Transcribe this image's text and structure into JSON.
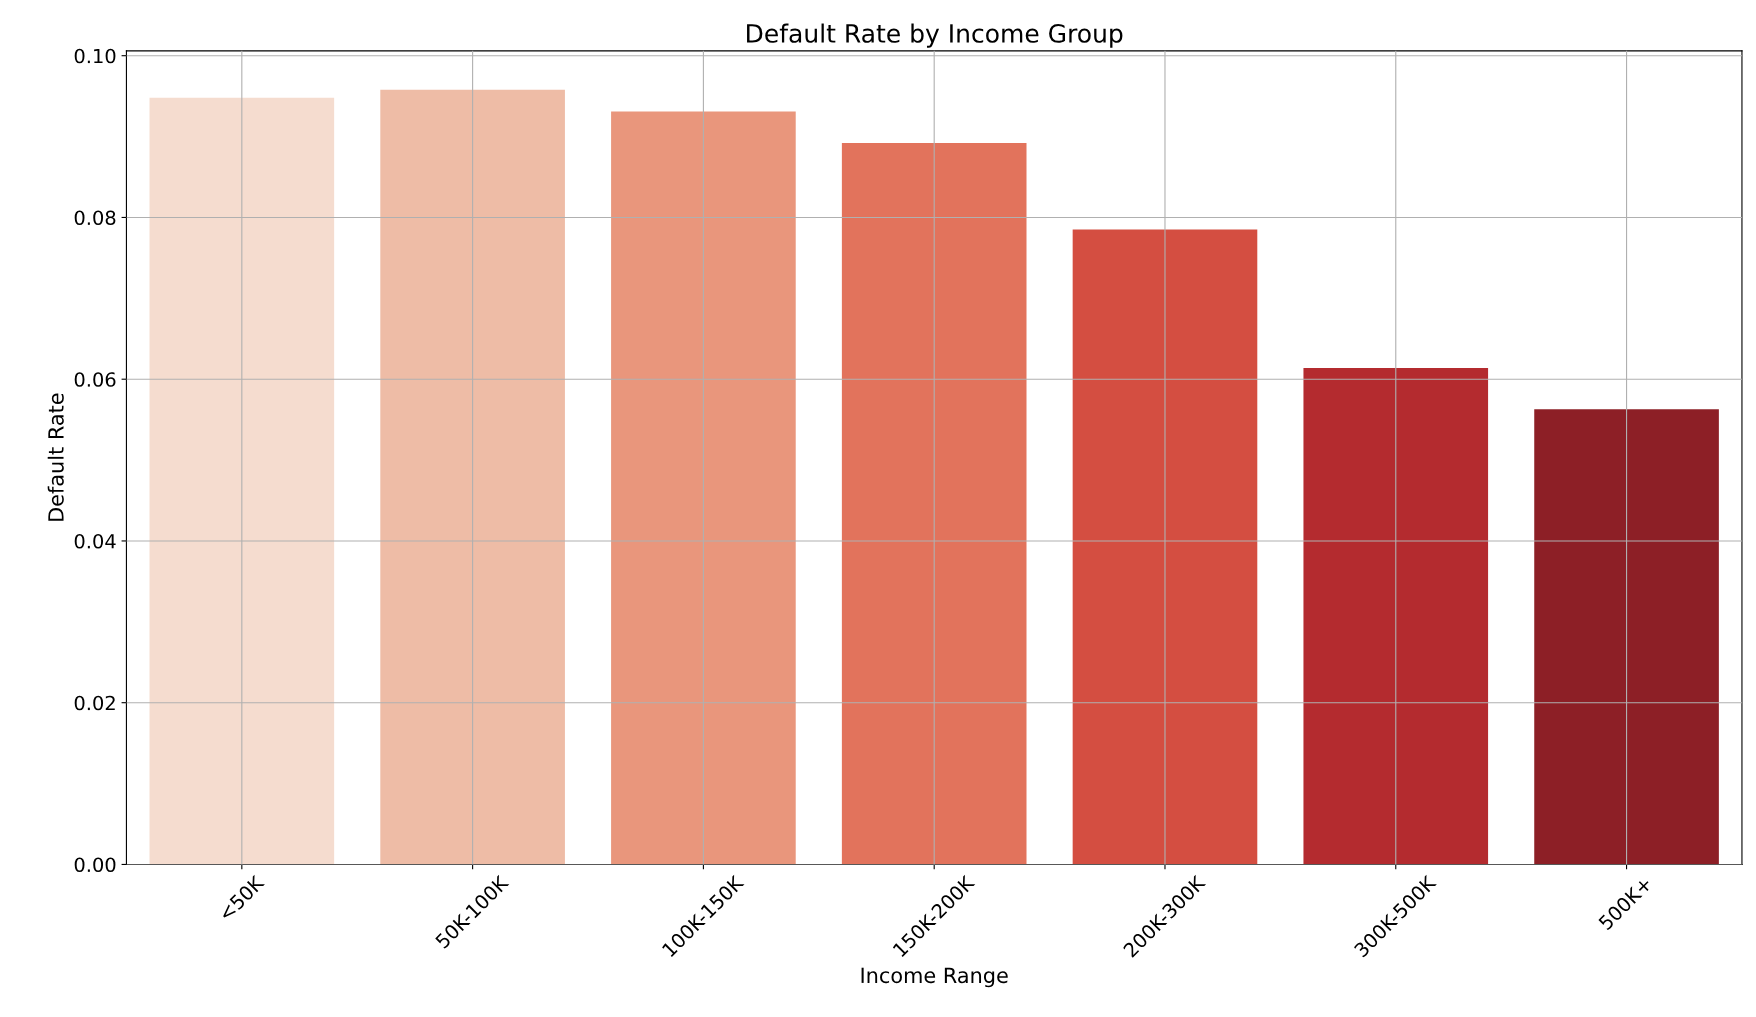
{
  "chart_data": {
    "type": "bar",
    "title": "Default Rate by Income Group",
    "xlabel": "Income Range",
    "ylabel": "Default Rate",
    "categories": [
      "<50K",
      "50K-100K",
      "100K-150K",
      "150K-200K",
      "200K-300K",
      "300K-500K",
      "500K+"
    ],
    "values": [
      0.0948,
      0.0958,
      0.0931,
      0.0892,
      0.0785,
      0.0614,
      0.0563
    ],
    "colors": [
      "#f5dccf",
      "#eebca6",
      "#e9967c",
      "#e2735c",
      "#d44e41",
      "#b42b2f",
      "#8d1f26"
    ],
    "ylim": [
      0,
      0.1006
    ],
    "yticks": [
      {
        "value": 0,
        "label": "0.00"
      },
      {
        "value": 0.02,
        "label": "0.02"
      },
      {
        "value": 0.04,
        "label": "0.04"
      },
      {
        "value": 0.06,
        "label": "0.06"
      },
      {
        "value": 0.08,
        "label": "0.08"
      },
      {
        "value": 0.1,
        "label": "0.10"
      }
    ],
    "grid": true
  }
}
